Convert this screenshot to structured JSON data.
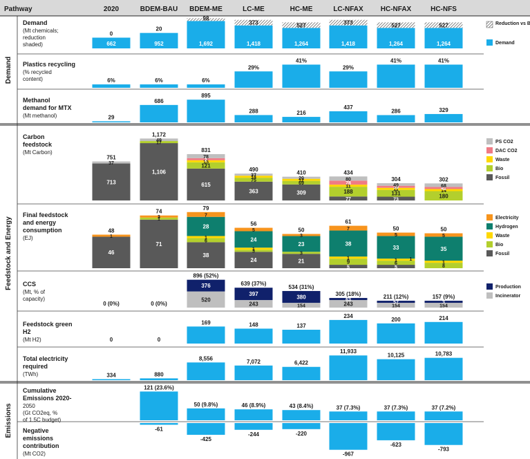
{
  "header": {
    "pathway_label": "Pathway",
    "columns": [
      "2020",
      "BDEM-BAU",
      "BDEM-ME",
      "LC-ME",
      "HC-ME",
      "LC-NFAX",
      "HC-NFAX",
      "HC-NFS"
    ]
  },
  "sections": [
    {
      "label": "Demand",
      "rows": [
        0,
        1,
        2
      ]
    },
    {
      "label": "Feedstock and Energy",
      "rows": [
        3,
        4,
        5,
        6,
        7
      ]
    },
    {
      "label": "Emissions",
      "rows": [
        8,
        9
      ]
    }
  ],
  "colors": {
    "demand": "#1aade9",
    "ps_co2": "#bfbfbf",
    "dac_co2": "#f07b84",
    "waste": "#ffd800",
    "bio": "#b3cf2d",
    "fossil": "#595959",
    "electricity": "#f7941d",
    "hydrogen": "#0e7f6e",
    "ccs_production": "#10216b",
    "ccs_incinerator": "#bfbfbf",
    "header_bg": "#d9d9d9"
  },
  "chart_data": [
    {
      "id": "demand",
      "type": "bar",
      "title": "Demand",
      "subtitle_lines": [
        "(Mt chemicals;",
        "reduction",
        "shaded)"
      ],
      "categories": [
        "2020",
        "BDEM-BAU",
        "BDEM-ME",
        "LC-ME",
        "HC-ME",
        "LC-NFAX",
        "HC-NFAX",
        "HC-NFS"
      ],
      "values": [
        662,
        952,
        1692,
        1418,
        1264,
        1418,
        1264,
        1264
      ],
      "value_labels": [
        "662",
        "952",
        "1,692",
        "1,418",
        "1,264",
        "1,418",
        "1,264",
        "1,264"
      ],
      "reduction_vs_bau": [
        0,
        20,
        98,
        373,
        527,
        373,
        527,
        527
      ],
      "reduction_labels": [
        "0",
        "20",
        "98",
        "373",
        "527",
        "373",
        "527",
        "527"
      ],
      "legend": [
        "Reduction vs BAU",
        "Demand"
      ]
    },
    {
      "id": "recycling",
      "type": "bar",
      "title": "Plastics recycling",
      "subtitle_lines": [
        "(% recycled",
        "content)"
      ],
      "categories": [
        "2020",
        "BDEM-BAU",
        "BDEM-ME",
        "LC-ME",
        "HC-ME",
        "LC-NFAX",
        "HC-NFAX",
        "HC-NFS"
      ],
      "values": [
        6,
        6,
        6,
        29,
        41,
        29,
        41,
        41
      ],
      "value_labels": [
        "6%",
        "6%",
        "6%",
        "29%",
        "41%",
        "29%",
        "41%",
        "41%"
      ]
    },
    {
      "id": "methanol",
      "type": "bar",
      "title": "Methanol",
      "title_lines": [
        "Methanol",
        "demand for MTX"
      ],
      "subtitle_lines": [
        "(Mt methanol)"
      ],
      "categories": [
        "2020",
        "BDEM-BAU",
        "BDEM-ME",
        "LC-ME",
        "HC-ME",
        "LC-NFAX",
        "HC-NFAX",
        "HC-NFS"
      ],
      "values": [
        29,
        686,
        895,
        288,
        216,
        437,
        286,
        329
      ],
      "value_labels": [
        "29",
        "686",
        "895",
        "288",
        "216",
        "437",
        "286",
        "329"
      ]
    },
    {
      "id": "carbon",
      "type": "bar",
      "stacked": true,
      "title_lines": [
        "Carbon",
        "feedstock"
      ],
      "subtitle_lines": [
        "(Mt Carbon)"
      ],
      "categories": [
        "2020",
        "BDEM-BAU",
        "BDEM-ME",
        "LC-ME",
        "HC-ME",
        "LC-NFAX",
        "HC-NFAX",
        "HC-NFS"
      ],
      "totals": [
        751,
        1172,
        831,
        490,
        410,
        434,
        304,
        302
      ],
      "total_labels": [
        "751",
        "1,172",
        "831",
        "490",
        "410",
        "434",
        "304",
        "302"
      ],
      "series": [
        {
          "name": "Fossil",
          "values": [
            713,
            1106,
            615,
            363,
            309,
            77,
            73,
            0
          ],
          "labels": [
            "713",
            "1,106",
            "615",
            "363",
            "309",
            "77",
            "73",
            ""
          ]
        },
        {
          "name": "Bio",
          "values": [
            0,
            17,
            121,
            75,
            69,
            188,
            131,
            180
          ],
          "labels": [
            "",
            "17",
            "121",
            "75",
            "69",
            "188",
            "131",
            "180"
          ]
        },
        {
          "name": "Waste",
          "values": [
            0,
            0,
            15,
            14,
            12,
            11,
            11,
            14
          ],
          "labels": [
            "",
            "",
            "15",
            "14",
            "12",
            "11",
            "11",
            "14"
          ]
        },
        {
          "name": "DAC CO2",
          "values": [
            0,
            0,
            2,
            0,
            0,
            78,
            39,
            41
          ],
          "labels": [
            "",
            "",
            "2",
            "",
            "",
            "78",
            "39",
            "41"
          ]
        },
        {
          "name": "PS CO2",
          "values": [
            37,
            49,
            78,
            37,
            20,
            80,
            49,
            68
          ],
          "labels": [
            "37",
            "49",
            "78",
            "37",
            "20",
            "80",
            "49",
            "68"
          ]
        }
      ],
      "legend": [
        "PS CO2",
        "DAC CO2",
        "Waste",
        "Bio",
        "Fossil"
      ]
    },
    {
      "id": "energy",
      "type": "bar",
      "stacked": true,
      "title_lines": [
        "Final feedstock",
        "and energy",
        "consumption"
      ],
      "subtitle_lines": [
        "(EJ)"
      ],
      "categories": [
        "2020",
        "BDEM-BAU",
        "BDEM-ME",
        "LC-ME",
        "HC-ME",
        "LC-NFAX",
        "HC-NFAX",
        "HC-NFS"
      ],
      "totals": [
        48,
        74,
        79,
        56,
        50,
        61,
        50,
        50
      ],
      "total_labels": [
        "48",
        "74",
        "79",
        "56",
        "50",
        "61",
        "50",
        "50"
      ],
      "series": [
        {
          "name": "Fossil",
          "values": [
            46,
            71,
            38,
            24,
            21,
            5,
            5,
            0
          ],
          "labels": [
            "46",
            "71",
            "38",
            "24",
            "21",
            "5",
            "5",
            ""
          ]
        },
        {
          "name": "Bio",
          "values": [
            0,
            1,
            6,
            3,
            3,
            9,
            6,
            8
          ],
          "labels": [
            "",
            "1",
            "6",
            "3",
            "3",
            "9",
            "6",
            "8"
          ]
        },
        {
          "name": "Waste",
          "values": [
            0,
            0,
            1,
            1,
            0,
            1,
            1,
            1
          ],
          "labels": [
            "",
            "",
            "1",
            "1",
            "",
            "1",
            "1",
            "1"
          ]
        },
        {
          "name": "Hydrogen",
          "values": [
            0,
            0,
            28,
            24,
            23,
            38,
            33,
            35
          ],
          "labels": [
            "",
            "",
            "28",
            "24",
            "23",
            "38",
            "33",
            "35"
          ]
        },
        {
          "name": "Electricity",
          "values": [
            1,
            3,
            7,
            5,
            3,
            7,
            5,
            5
          ],
          "labels": [
            "1",
            "3",
            "7",
            "5",
            "3",
            "7",
            "5",
            "5"
          ]
        }
      ],
      "extra_labels": [
        "",
        "",
        "",
        "",
        "",
        "",
        "1",
        ""
      ],
      "legend": [
        "Electricity",
        "Hydrogen",
        "Waste",
        "Bio",
        "Fossil"
      ]
    },
    {
      "id": "ccs",
      "type": "bar",
      "stacked": true,
      "title": "CCS",
      "subtitle_lines": [
        "(Mt, % of",
        "capacity)"
      ],
      "categories": [
        "2020",
        "BDEM-BAU",
        "BDEM-ME",
        "LC-ME",
        "HC-ME",
        "LC-NFAX",
        "HC-NFAX",
        "HC-NFS"
      ],
      "total_labels": [
        "0 (0%)",
        "0 (0%)",
        "896 (52%)",
        "639 (37%)",
        "534 (31%)",
        "305 (18%)",
        "211 (12%)",
        "157 (9%)"
      ],
      "series": [
        {
          "name": "Incinerator",
          "values": [
            0,
            0,
            520,
            243,
            154,
            243,
            154,
            154
          ],
          "labels": [
            "",
            "",
            "520",
            "243",
            "154",
            "243",
            "154",
            "154"
          ]
        },
        {
          "name": "Production",
          "values": [
            0,
            0,
            376,
            397,
            380,
            63,
            57,
            3
          ],
          "labels": [
            "",
            "",
            "376",
            "397",
            "380",
            "63",
            "57",
            "3"
          ]
        }
      ],
      "legend": [
        "Production",
        "Incinerator"
      ]
    },
    {
      "id": "h2",
      "type": "bar",
      "title_lines": [
        "Feedstock green",
        "H2"
      ],
      "subtitle": "(Mt H2)",
      "categories": [
        "2020",
        "BDEM-BAU",
        "BDEM-ME",
        "LC-ME",
        "HC-ME",
        "LC-NFAX",
        "HC-NFAX",
        "HC-NFS"
      ],
      "values": [
        0,
        0,
        169,
        148,
        137,
        234,
        200,
        214
      ],
      "value_labels": [
        "0",
        "0",
        "169",
        "148",
        "137",
        "234",
        "200",
        "214"
      ]
    },
    {
      "id": "electricity",
      "type": "bar",
      "title_lines": [
        "Total electricity",
        "required"
      ],
      "subtitle": "(TWh)",
      "categories": [
        "2020",
        "BDEM-BAU",
        "BDEM-ME",
        "LC-ME",
        "HC-ME",
        "LC-NFAX",
        "HC-NFAX",
        "HC-NFS"
      ],
      "values": [
        334,
        880,
        8556,
        7072,
        6422,
        11933,
        10125,
        10783
      ],
      "value_labels": [
        "334",
        "880",
        "8,556",
        "7,072",
        "6,422",
        "11,933",
        "10,125",
        "10,783"
      ]
    },
    {
      "id": "cumulative",
      "type": "bar",
      "title_lines": [
        "Cumulative",
        "Emissions 2020-"
      ],
      "subtitle_lines": [
        "2050",
        "(Gt CO2eq, %",
        "of 1.5C budget)"
      ],
      "categories": [
        "2020",
        "BDEM-BAU",
        "BDEM-ME",
        "LC-ME",
        "HC-ME",
        "LC-NFAX",
        "HC-NFAX",
        "HC-NFS"
      ],
      "values": [
        null,
        121,
        50,
        46,
        43,
        37,
        37,
        37
      ],
      "value_labels": [
        "",
        "121 (23.6%)",
        "50 (9.8%)",
        "46 (8.9%)",
        "43 (8.4%)",
        "37 (7.3%)",
        "37 (7.3%)",
        "37 (7.2%)"
      ]
    },
    {
      "id": "negative",
      "type": "bar",
      "title_lines": [
        "Negative",
        "emissions",
        "contribution"
      ],
      "subtitle": "(Mt CO2)",
      "categories": [
        "2020",
        "BDEM-BAU",
        "BDEM-ME",
        "LC-ME",
        "HC-ME",
        "LC-NFAX",
        "HC-NFAX",
        "HC-NFS"
      ],
      "values": [
        0,
        -61,
        -425,
        -244,
        -220,
        -967,
        -623,
        -793
      ],
      "value_labels": [
        "",
        "-61",
        "-425",
        "-244",
        "-220",
        "-967",
        "-623",
        "-793"
      ]
    }
  ]
}
